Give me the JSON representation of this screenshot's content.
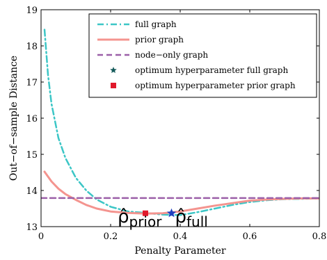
{
  "chart_data": {
    "type": "line",
    "xlabel": "Penalty Parameter",
    "ylabel": "Out−of−sample Distance",
    "xlim": [
      0,
      0.8
    ],
    "ylim": [
      13,
      19
    ],
    "xticks": [
      0,
      0.2,
      0.4,
      0.6,
      0.8
    ],
    "xtick_labels": [
      "0",
      "0.2",
      "0.4",
      "0.6",
      "0.8"
    ],
    "yticks": [
      13,
      14,
      15,
      16,
      17,
      18,
      19
    ],
    "ytick_labels": [
      "13",
      "14",
      "15",
      "16",
      "17",
      "18",
      "19"
    ],
    "grid": false,
    "legend_position": "top-right",
    "series": [
      {
        "name": "full graph",
        "style": "dash-dot",
        "color": "#3cc6c6",
        "x": [
          0.01,
          0.02,
          0.03,
          0.05,
          0.07,
          0.1,
          0.13,
          0.16,
          0.2,
          0.25,
          0.3,
          0.35,
          0.4,
          0.45,
          0.5,
          0.55,
          0.6,
          0.65,
          0.7,
          0.75,
          0.8
        ],
        "y": [
          18.45,
          17.2,
          16.4,
          15.45,
          14.9,
          14.35,
          14.0,
          13.75,
          13.55,
          13.42,
          13.38,
          13.33,
          13.32,
          13.4,
          13.5,
          13.6,
          13.68,
          13.73,
          13.76,
          13.77,
          13.78
        ]
      },
      {
        "name": "prior graph",
        "style": "solid",
        "color": "#f4948f",
        "x": [
          0.01,
          0.03,
          0.05,
          0.07,
          0.1,
          0.13,
          0.16,
          0.2,
          0.25,
          0.3,
          0.35,
          0.4,
          0.45,
          0.5,
          0.55,
          0.6,
          0.65,
          0.7,
          0.75,
          0.8
        ],
        "y": [
          14.52,
          14.25,
          14.05,
          13.9,
          13.74,
          13.6,
          13.5,
          13.42,
          13.38,
          13.36,
          13.37,
          13.42,
          13.5,
          13.58,
          13.65,
          13.72,
          13.75,
          13.77,
          13.78,
          13.78
        ]
      },
      {
        "name": "node−only graph",
        "style": "dashed",
        "color": "#9b5fa8",
        "x": [
          0.0,
          0.8
        ],
        "y": [
          13.79,
          13.79
        ]
      }
    ],
    "markers": [
      {
        "name": "optimum hyperparameter full graph",
        "shape": "star",
        "color": "#1f3fbf",
        "legend_color": "#145a5a",
        "x": 0.375,
        "y": 13.37
      },
      {
        "name": "optimum hyperparameter prior graph",
        "shape": "square",
        "color": "#e0192b",
        "x": 0.3,
        "y": 13.37
      }
    ],
    "annotations": [
      {
        "base": "ρ̂",
        "sub": "prior",
        "x": 0.22,
        "y": 13.12
      },
      {
        "base": "ρ̂",
        "sub": "full",
        "x": 0.385,
        "y": 13.12
      }
    ]
  }
}
